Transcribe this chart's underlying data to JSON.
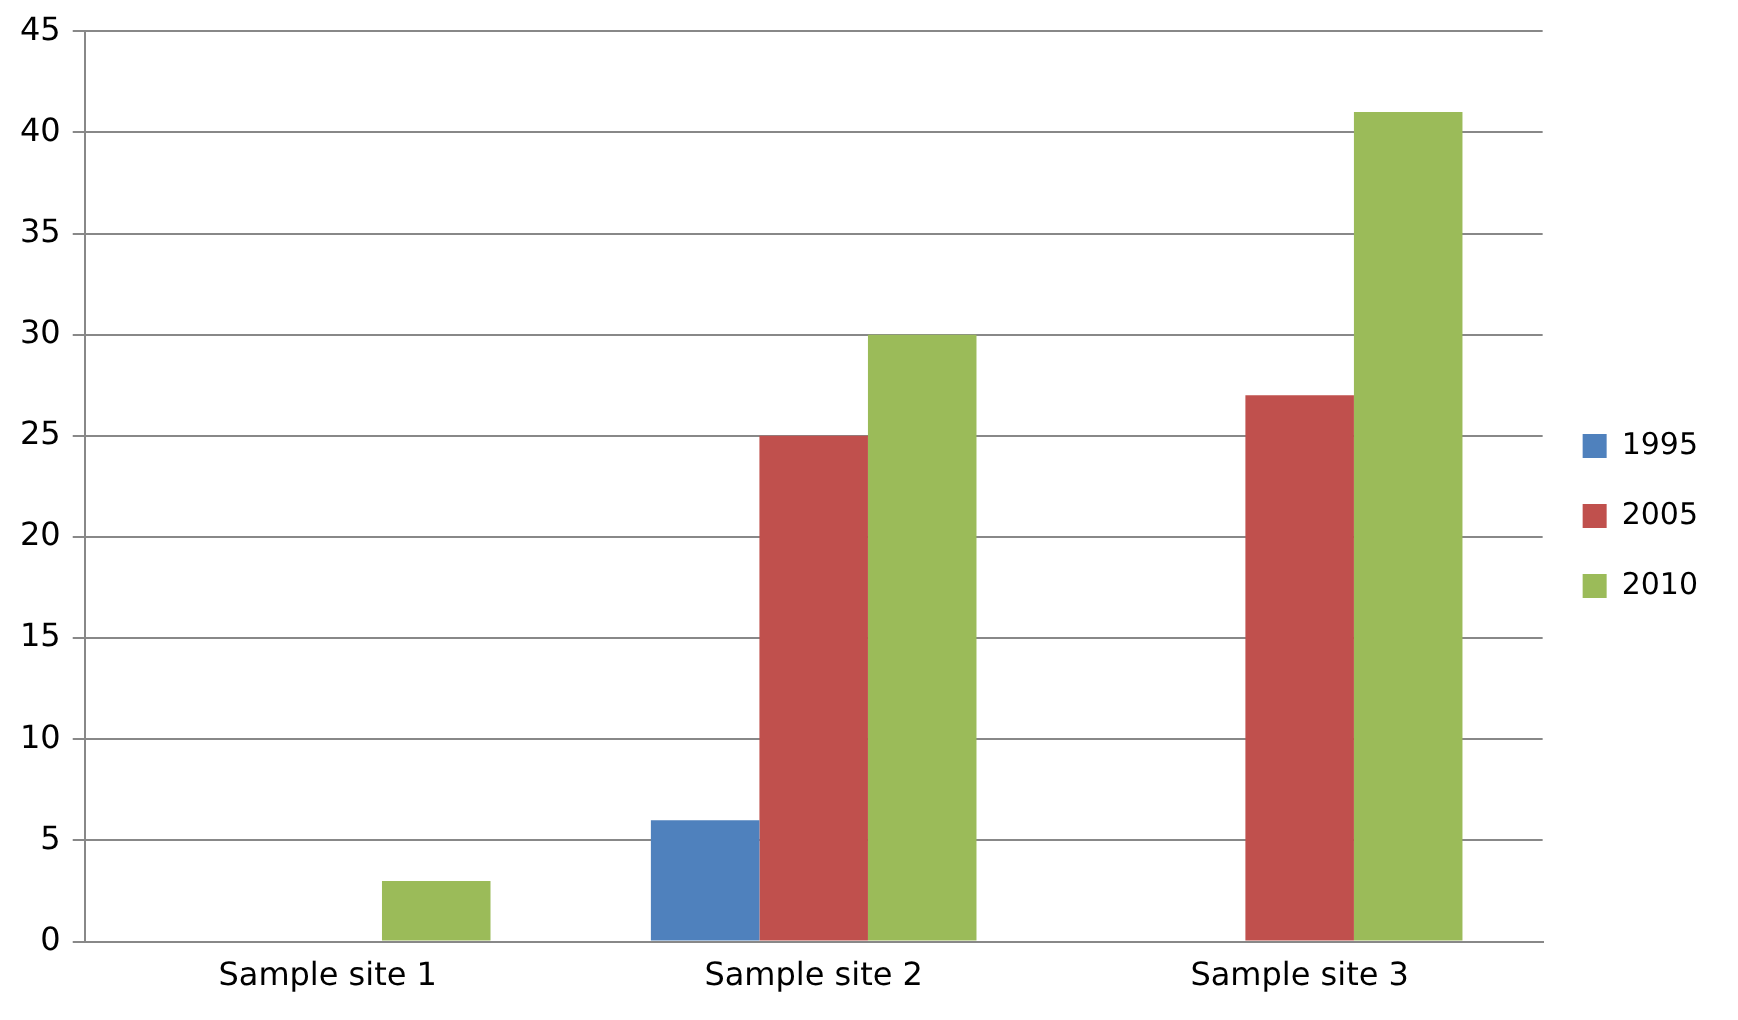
{
  "chart_data": {
    "type": "bar",
    "categories": [
      "Sample site 1",
      "Sample site 2",
      "Sample site 3"
    ],
    "series": [
      {
        "name": "1995",
        "color": "#4f81bd",
        "values": [
          0,
          6,
          0
        ]
      },
      {
        "name": "2005",
        "color": "#c0504d",
        "values": [
          0,
          25,
          27
        ]
      },
      {
        "name": "2010",
        "color": "#9bbb59",
        "values": [
          3,
          30,
          41
        ]
      }
    ],
    "ylim": [
      0,
      45
    ],
    "yticks": [
      0,
      5,
      10,
      15,
      20,
      25,
      30,
      35,
      40,
      45
    ],
    "grid": "y",
    "legend": "right"
  }
}
